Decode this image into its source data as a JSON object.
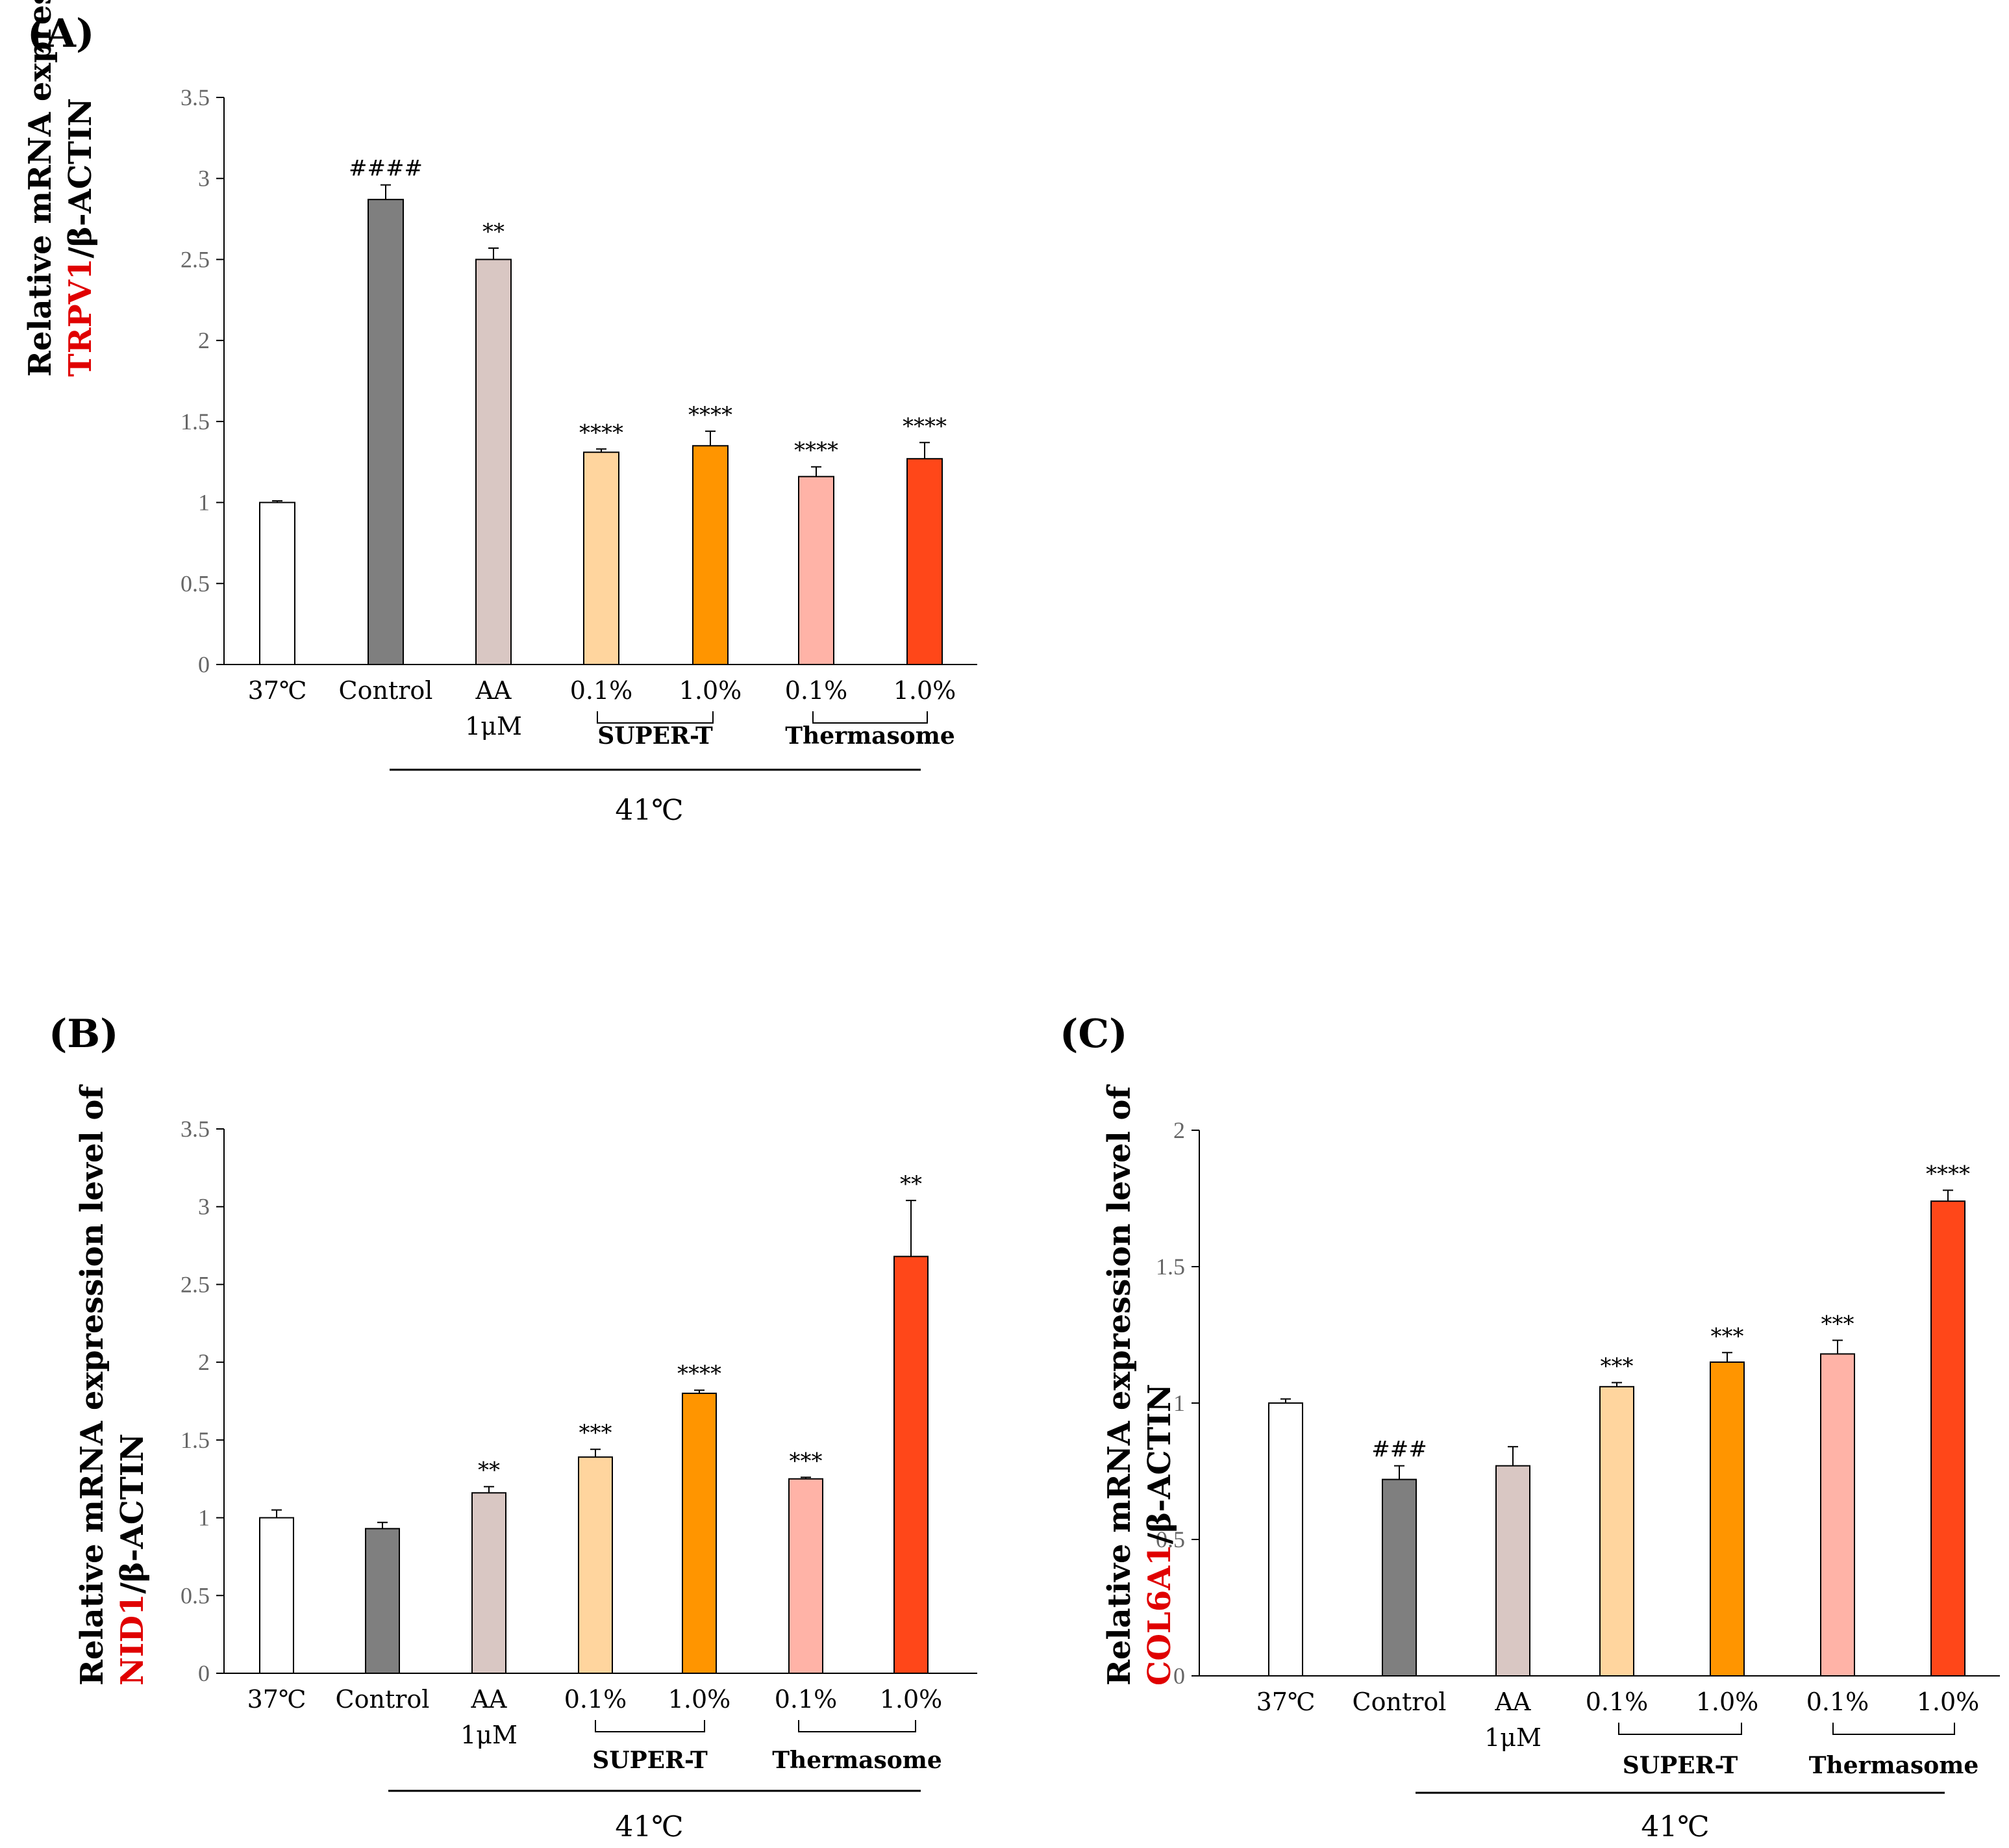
{
  "chart_data": [
    {
      "type": "bar",
      "panel": "(A)",
      "ylabel_line1": "Relative mRNA expression level of",
      "gene": "TRPV1",
      "ylabel_suffix": "/β-ACTIN",
      "ylim": [
        0,
        3.5
      ],
      "yticks": [
        "0",
        "0.5",
        "1",
        "1.5",
        "2",
        "2.5",
        "3",
        "3.5"
      ],
      "categories": [
        "37℃",
        "Control",
        "AA|1μM",
        "0.1%",
        "1.0%",
        "0.1%",
        "1.0%"
      ],
      "values": [
        1.0,
        2.87,
        2.5,
        1.31,
        1.35,
        1.16,
        1.27
      ],
      "errors": [
        0.01,
        0.09,
        0.07,
        0.02,
        0.09,
        0.06,
        0.1
      ],
      "significance": [
        "",
        "####",
        "**",
        "****",
        "****",
        "****",
        "****"
      ],
      "colors": [
        "#ffffff",
        "#7f7f7f",
        "#d9c7c3",
        "#ffd59e",
        "#ff9500",
        "#ffb3a7",
        "#ff4719"
      ],
      "groups": [
        "SUPER-T",
        "Thermasome"
      ],
      "temperature": "41℃"
    },
    {
      "type": "bar",
      "panel": "(B)",
      "ylabel_line1": "Relative mRNA expression level of",
      "gene": "NID1",
      "ylabel_suffix": "/β-ACTIN",
      "ylim": [
        0,
        3.5
      ],
      "yticks": [
        "0",
        "0.5",
        "1",
        "1.5",
        "2",
        "2.5",
        "3",
        "3.5"
      ],
      "categories": [
        "37℃",
        "Control",
        "AA|1μM",
        "0.1%",
        "1.0%",
        "0.1%",
        "1.0%"
      ],
      "values": [
        1.0,
        0.93,
        1.16,
        1.39,
        1.8,
        1.25,
        2.68
      ],
      "errors": [
        0.05,
        0.04,
        0.04,
        0.05,
        0.02,
        0.01,
        0.36
      ],
      "significance": [
        "",
        "",
        "**",
        "***",
        "****",
        "***",
        "**"
      ],
      "colors": [
        "#ffffff",
        "#7f7f7f",
        "#d9c7c3",
        "#ffd59e",
        "#ff9500",
        "#ffb3a7",
        "#ff4719"
      ],
      "groups": [
        "SUPER-T",
        "Thermasome"
      ],
      "temperature": "41℃"
    },
    {
      "type": "bar",
      "panel": "(C)",
      "ylabel_line1": "Relative mRNA expression level of",
      "gene": "COL6A1",
      "ylabel_suffix": "/β-ACTIN",
      "ylim": [
        0,
        2
      ],
      "yticks": [
        "0",
        "0.5",
        "1",
        "1.5",
        "2"
      ],
      "categories": [
        "37℃",
        "Control",
        "AA|1μM",
        "0.1%",
        "1.0%",
        "0.1%",
        "1.0%"
      ],
      "values": [
        1.0,
        0.72,
        0.77,
        1.06,
        1.15,
        1.18,
        1.74
      ],
      "errors": [
        0.015,
        0.05,
        0.07,
        0.015,
        0.035,
        0.05,
        0.04
      ],
      "significance": [
        "",
        "###",
        "",
        "***",
        "***",
        "***",
        "****"
      ],
      "colors": [
        "#ffffff",
        "#7f7f7f",
        "#d9c7c3",
        "#ffd59e",
        "#ff9500",
        "#ffb3a7",
        "#ff4719"
      ],
      "groups": [
        "SUPER-T",
        "Thermasome"
      ],
      "temperature": "41℃"
    }
  ]
}
